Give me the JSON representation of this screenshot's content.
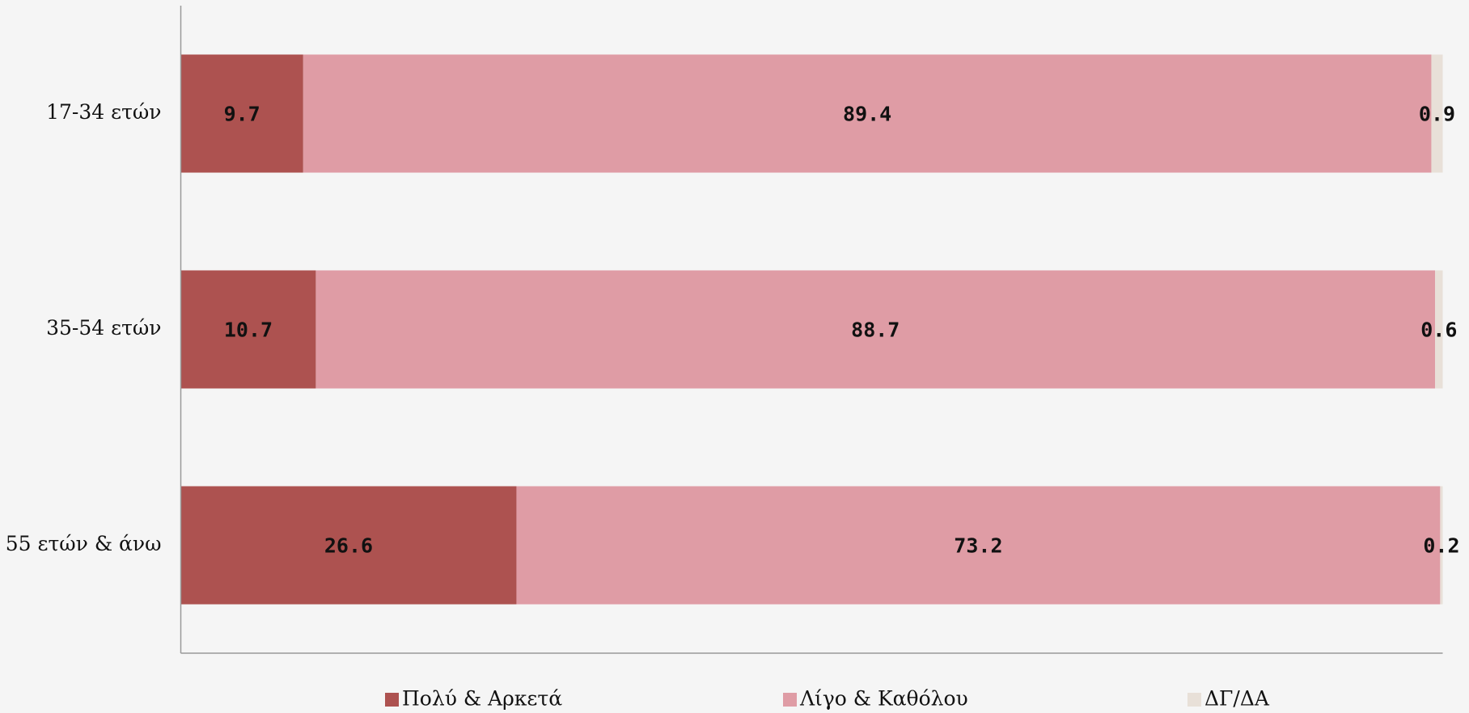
{
  "chart_data": {
    "type": "stacked-barh",
    "categories": [
      "17-34 ετών",
      "35-54 ετών",
      "55 ετών & άνω"
    ],
    "series": [
      {
        "name": "Πολύ & Αρκετά",
        "color": "#ad5250",
        "values": [
          9.7,
          10.7,
          26.6
        ]
      },
      {
        "name": "Λίγο & Καθόλου",
        "color": "#df9ca5",
        "values": [
          89.4,
          88.7,
          73.2
        ]
      },
      {
        "name": "ΔΓ/ΔΑ",
        "color": "#e8e0d8",
        "values": [
          0.9,
          0.6,
          0.2
        ]
      }
    ],
    "xlim": [
      0,
      100
    ],
    "legend": "bottom"
  }
}
